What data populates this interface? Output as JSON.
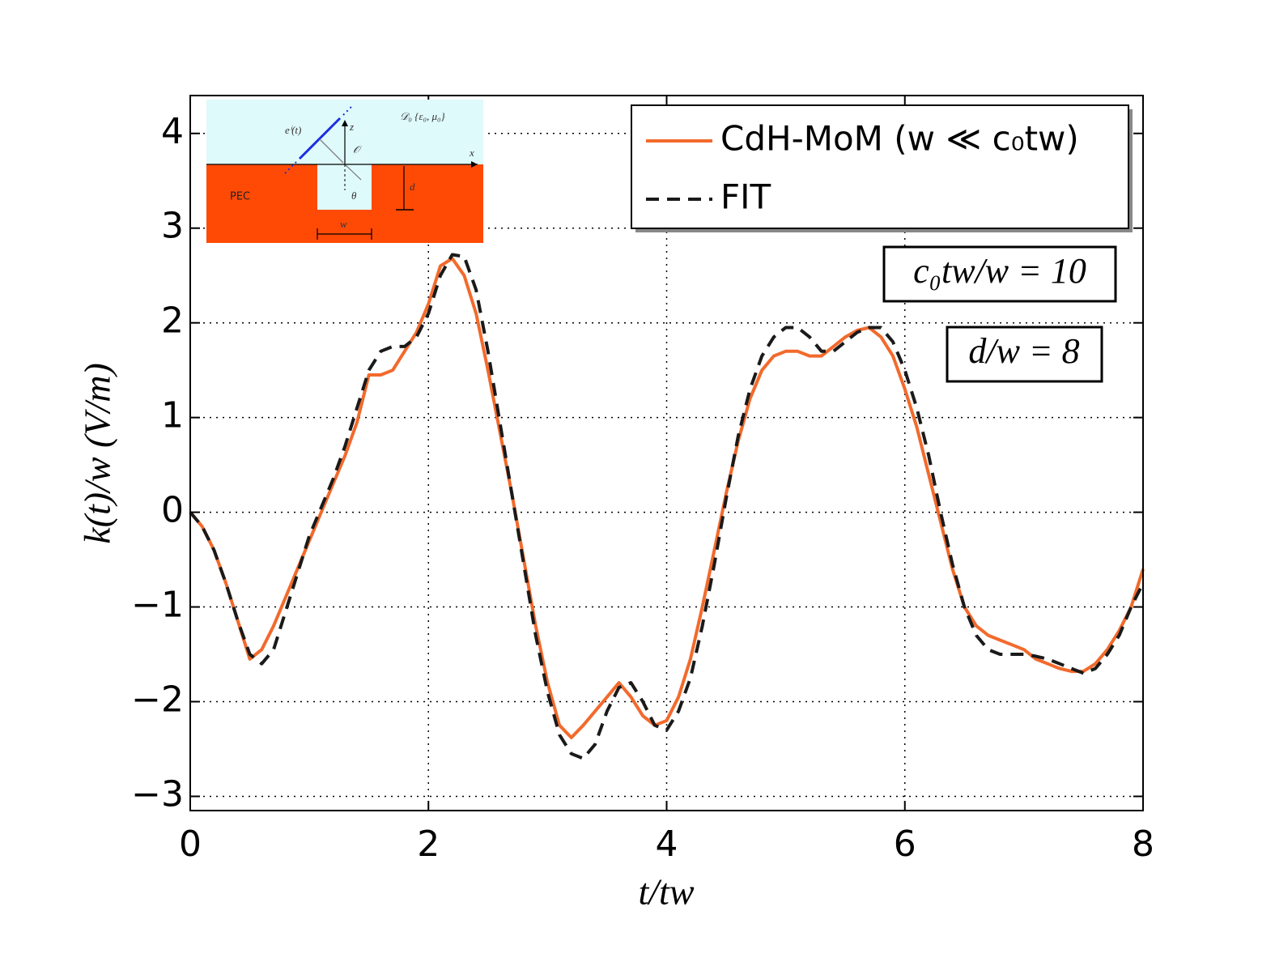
{
  "chart_data": {
    "type": "line",
    "x_label": "t/tw",
    "y_label": "k(t)/w   (V/m)",
    "x": [
      0,
      0.1,
      0.2,
      0.3,
      0.4,
      0.5,
      0.6,
      0.7,
      0.8,
      0.9,
      1.0,
      1.1,
      1.2,
      1.3,
      1.4,
      1.5,
      1.6,
      1.7,
      1.8,
      1.9,
      2.0,
      2.1,
      2.2,
      2.3,
      2.4,
      2.5,
      2.6,
      2.7,
      2.8,
      2.9,
      3.0,
      3.1,
      3.2,
      3.3,
      3.4,
      3.5,
      3.6,
      3.7,
      3.8,
      3.9,
      4.0,
      4.1,
      4.2,
      4.3,
      4.4,
      4.5,
      4.6,
      4.7,
      4.8,
      4.9,
      5.0,
      5.1,
      5.2,
      5.3,
      5.4,
      5.5,
      5.6,
      5.7,
      5.8,
      5.9,
      6.0,
      6.1,
      6.2,
      6.3,
      6.4,
      6.5,
      6.6,
      6.7,
      6.8,
      6.9,
      7.0,
      7.1,
      7.2,
      7.3,
      7.4,
      7.5,
      7.6,
      7.7,
      7.8,
      7.9,
      8.0
    ],
    "series": [
      {
        "name": "CdH-MoM (w ≪ c₀tw)",
        "color": "#f26a2c",
        "dash": "solid",
        "values": [
          0,
          -0.15,
          -0.4,
          -0.75,
          -1.15,
          -1.55,
          -1.45,
          -1.2,
          -0.9,
          -0.6,
          -0.3,
          0,
          0.3,
          0.6,
          0.95,
          1.45,
          1.45,
          1.5,
          1.7,
          1.9,
          2.2,
          2.6,
          2.68,
          2.5,
          2.1,
          1.5,
          0.85,
          0.2,
          -0.5,
          -1.2,
          -1.8,
          -2.25,
          -2.38,
          -2.25,
          -2.1,
          -1.95,
          -1.8,
          -1.95,
          -2.15,
          -2.25,
          -2.2,
          -1.95,
          -1.55,
          -1.0,
          -0.4,
          0.2,
          0.75,
          1.2,
          1.5,
          1.65,
          1.7,
          1.7,
          1.65,
          1.65,
          1.75,
          1.85,
          1.92,
          1.95,
          1.85,
          1.65,
          1.3,
          0.9,
          0.4,
          -0.1,
          -0.6,
          -1.0,
          -1.2,
          -1.3,
          -1.35,
          -1.4,
          -1.45,
          -1.55,
          -1.6,
          -1.65,
          -1.68,
          -1.68,
          -1.6,
          -1.45,
          -1.25,
          -1.0,
          -0.6
        ]
      },
      {
        "name": "FIT",
        "color": "#1a1a1a",
        "dash": "dashed",
        "values": [
          0,
          -0.15,
          -0.4,
          -0.75,
          -1.15,
          -1.5,
          -1.6,
          -1.45,
          -1.05,
          -0.65,
          -0.25,
          0.05,
          0.35,
          0.7,
          1.1,
          1.5,
          1.7,
          1.75,
          1.75,
          1.85,
          2.1,
          2.5,
          2.72,
          2.7,
          2.35,
          1.7,
          0.95,
          0.2,
          -0.55,
          -1.3,
          -1.9,
          -2.35,
          -2.55,
          -2.6,
          -2.45,
          -2.1,
          -1.85,
          -1.8,
          -2.0,
          -2.25,
          -2.3,
          -2.1,
          -1.75,
          -1.2,
          -0.55,
          0.15,
          0.8,
          1.3,
          1.65,
          1.85,
          1.95,
          1.95,
          1.85,
          1.7,
          1.7,
          1.8,
          1.9,
          1.95,
          1.95,
          1.8,
          1.5,
          1.1,
          0.6,
          0.0,
          -0.55,
          -1.0,
          -1.3,
          -1.45,
          -1.5,
          -1.5,
          -1.5,
          -1.52,
          -1.55,
          -1.6,
          -1.65,
          -1.7,
          -1.65,
          -1.5,
          -1.3,
          -1.0,
          -0.75
        ]
      }
    ],
    "xlim": [
      0,
      8
    ],
    "xticks": [
      0,
      2,
      4,
      6,
      8
    ],
    "ylim": [
      -3.15,
      4.4
    ],
    "yticks": [
      -3,
      -2,
      -1,
      0,
      1,
      2,
      3,
      4
    ],
    "grid": true,
    "legend": "top-right",
    "annotations": [
      "c₀tw/w = 10",
      "d/w = 8"
    ],
    "inset": {
      "domain": "𝒟₀  {ε₀, μ₀}",
      "field": "eⁱ(t)",
      "z": "z",
      "x": "x",
      "origin": "𝒪",
      "pec": "PEC",
      "depth": "d",
      "width": "w",
      "angle": "θ"
    }
  }
}
